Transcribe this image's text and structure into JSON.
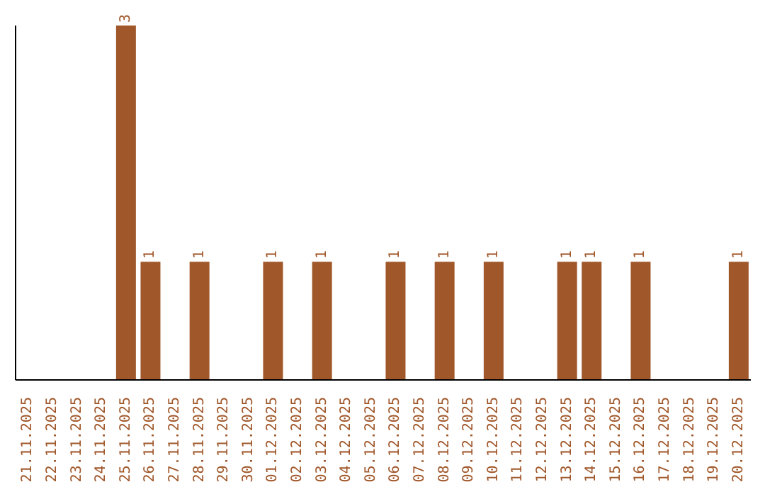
{
  "chart_data": {
    "type": "bar",
    "categories": [
      "21.11.2025",
      "22.11.2025",
      "23.11.2025",
      "24.11.2025",
      "25.11.2025",
      "26.11.2025",
      "27.11.2025",
      "28.11.2025",
      "29.11.2025",
      "30.11.2025",
      "01.12.2025",
      "02.12.2025",
      "03.12.2025",
      "04.12.2025",
      "05.12.2025",
      "06.12.2025",
      "07.12.2025",
      "08.12.2025",
      "09.12.2025",
      "10.12.2025",
      "11.12.2025",
      "12.12.2025",
      "13.12.2025",
      "14.12.2025",
      "15.12.2025",
      "16.12.2025",
      "17.12.2025",
      "18.12.2025",
      "19.12.2025",
      "20.12.2025"
    ],
    "values": [
      0,
      0,
      0,
      0,
      3,
      1,
      0,
      1,
      0,
      0,
      1,
      0,
      1,
      0,
      0,
      1,
      0,
      1,
      0,
      1,
      0,
      0,
      1,
      1,
      0,
      1,
      0,
      0,
      0,
      1
    ],
    "value_labels": [
      null,
      null,
      null,
      null,
      "3",
      "1",
      null,
      "1",
      null,
      null,
      "1",
      null,
      "1",
      null,
      null,
      "1",
      null,
      "1",
      null,
      "1",
      null,
      null,
      "1",
      "1",
      null,
      "1",
      null,
      null,
      null,
      "1"
    ],
    "color": "#a0572a",
    "relative": false,
    "grid": false,
    "legend": false
  }
}
